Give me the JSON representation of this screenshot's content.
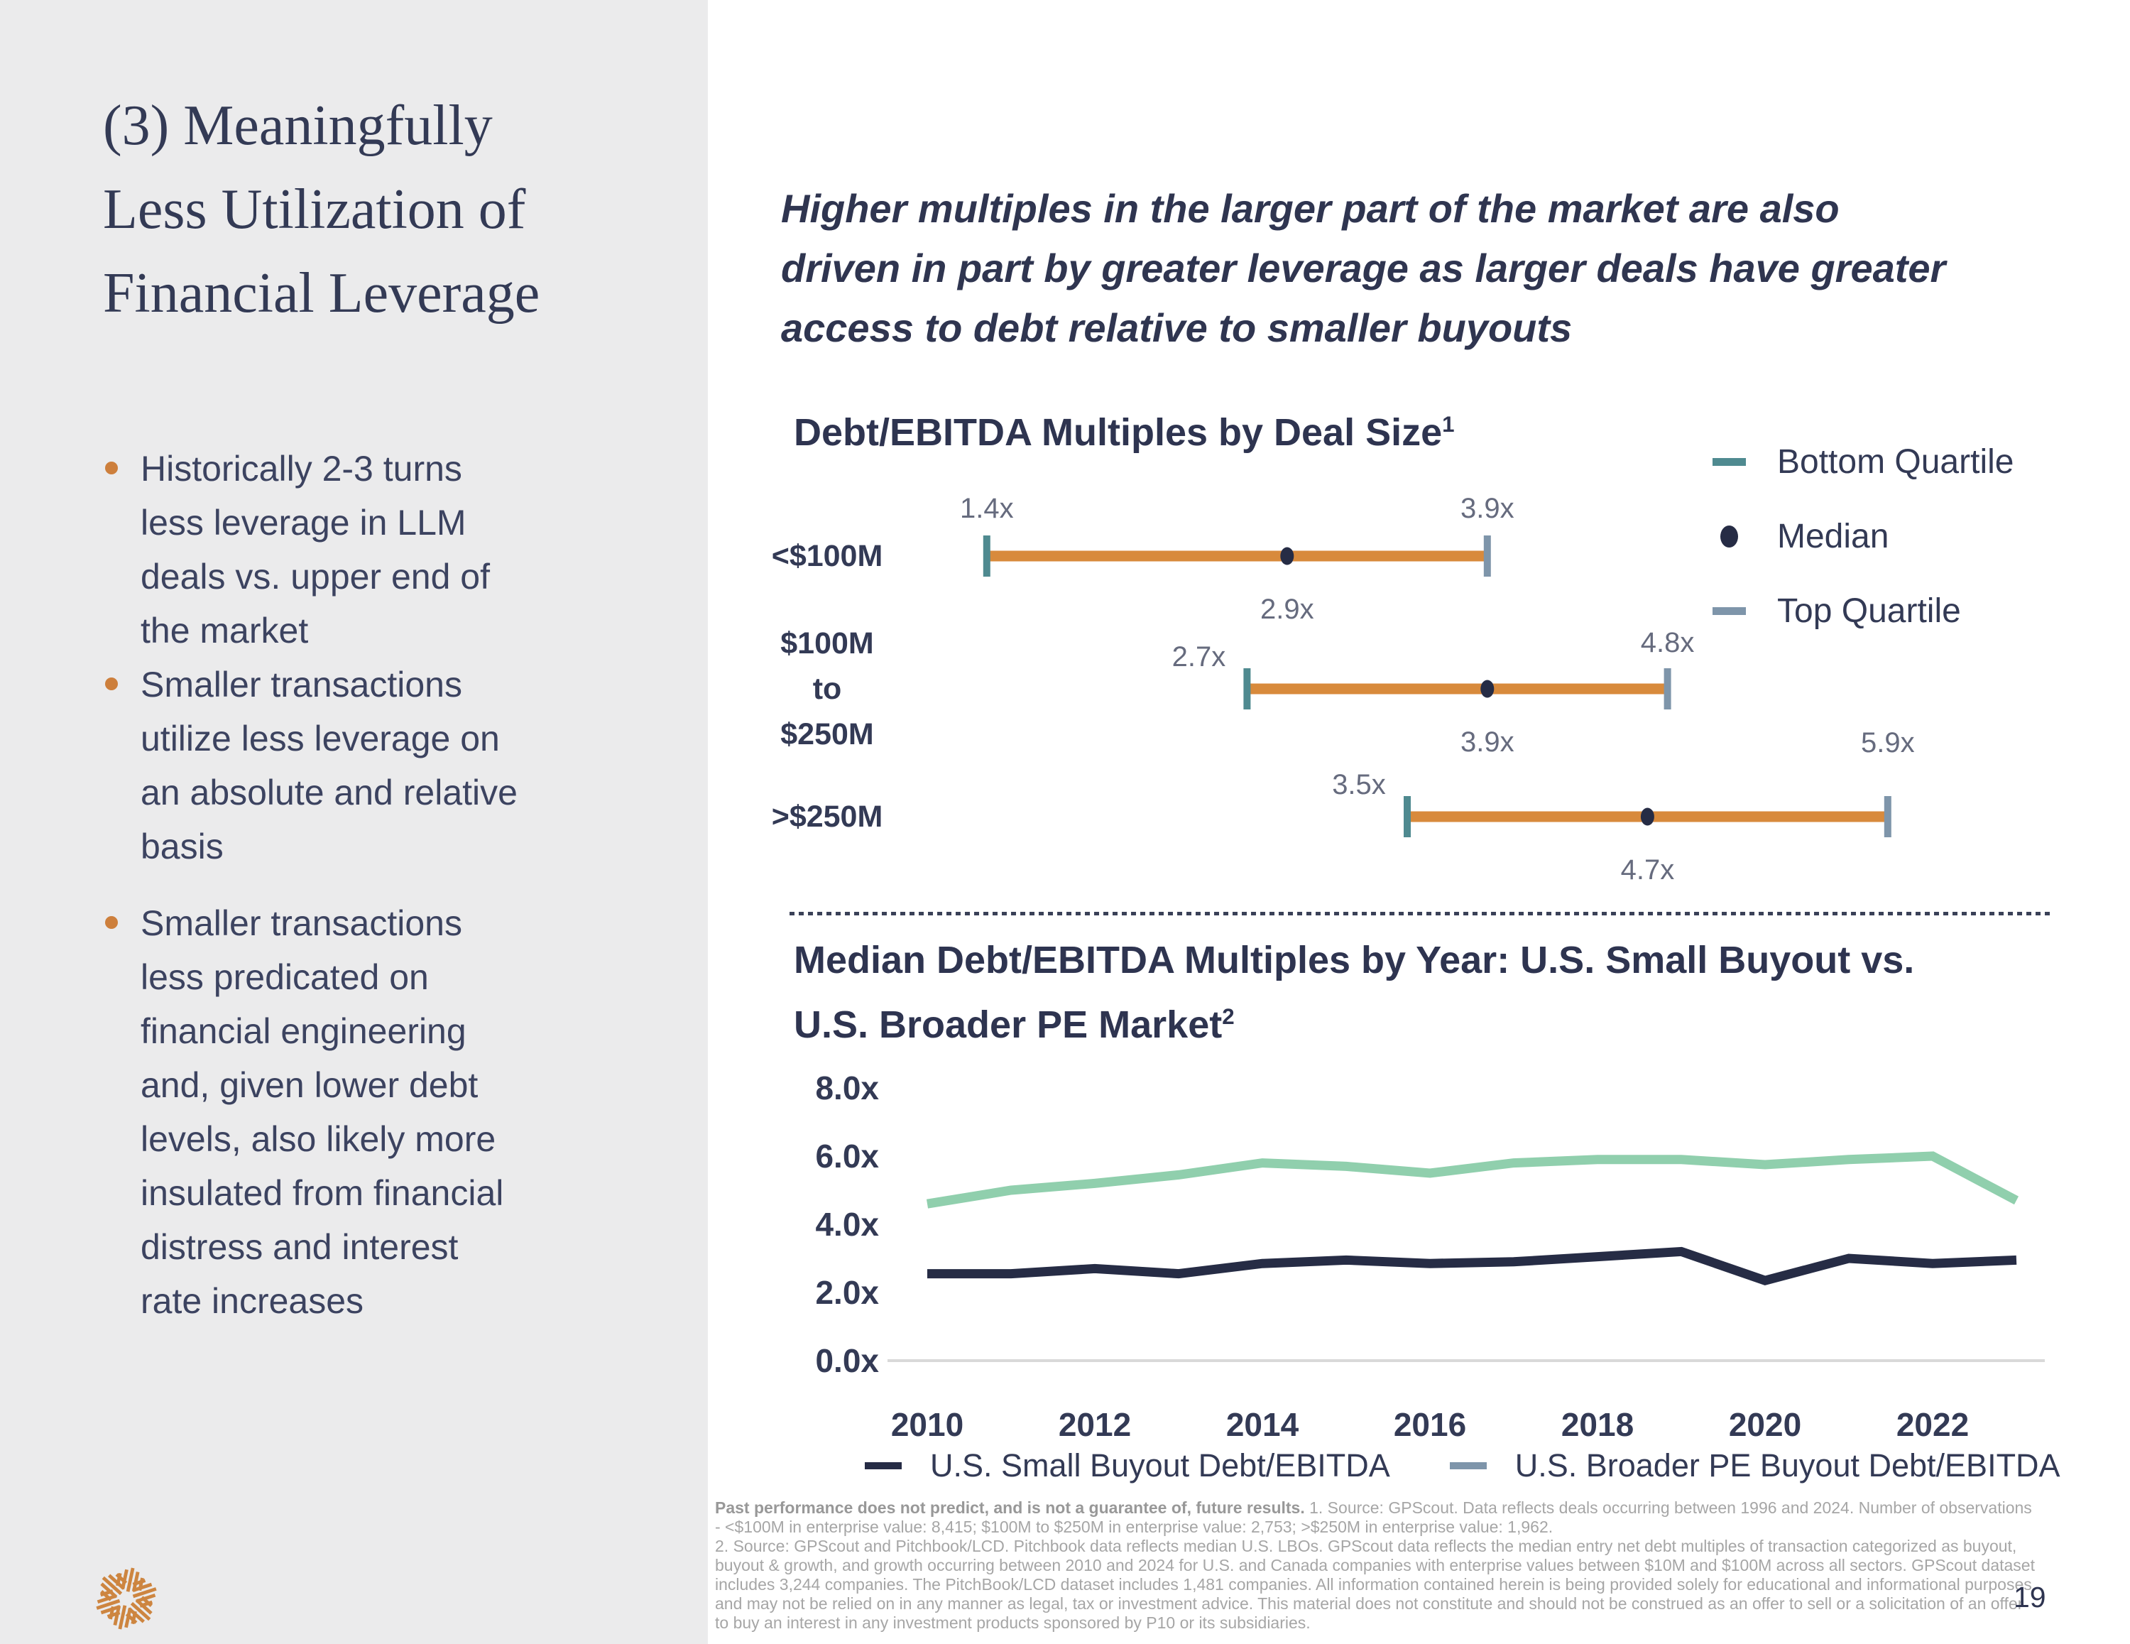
{
  "slide": {
    "title": "(3) Meaningfully\nLess Utilization of\nFinancial Leverage",
    "page_number": "19",
    "accent_orange": "#cd7f3c",
    "navy": "#333a55",
    "left_panel_background": "#ebebec"
  },
  "bullets": [
    {
      "text": "Historically 2-3 turns\nless leverage in LLM\ndeals vs. upper end of\nthe market"
    },
    {
      "text": "Smaller transactions\nutilize less leverage on\nan absolute and relative\nbasis"
    },
    {
      "text": "Smaller transactions\nless predicated on\nfinancial engineering\nand, given lower debt\nlevels, also likely more\ninsulated from financial\ndistress and interest\nrate increases"
    }
  ],
  "header_quote": "Higher multiples in the larger part of the market are also\ndriven in part by greater leverage as larger deals have greater\naccess to debt relative to smaller buyouts",
  "chart_data": [
    {
      "type": "range",
      "title": "Debt/EBITDA Multiples by Deal Size",
      "title_superscript": "1",
      "unit_suffix": "x",
      "bar_color": "#d88a3c",
      "legend": [
        {
          "label": "Bottom Quartile",
          "color": "#4f8a90"
        },
        {
          "label": "Median",
          "color": "#262c45"
        },
        {
          "label": "Top Quartile",
          "color": "#7e95aa"
        }
      ],
      "rows": [
        {
          "category": "<$100M",
          "bottom_quartile": 1.4,
          "median": 2.9,
          "top_quartile": 3.9
        },
        {
          "category": "$100M\nto\n$250M",
          "bottom_quartile": 2.7,
          "median": 3.9,
          "top_quartile": 4.8
        },
        {
          "category": ">$250M",
          "bottom_quartile": 3.5,
          "median": 4.7,
          "top_quartile": 5.9
        }
      ]
    },
    {
      "type": "line",
      "title": "Median Debt/EBITDA Multiples by Year: U.S. Small Buyout vs.\nU.S. Broader PE Market",
      "title_superscript": "2",
      "x": [
        2010,
        2011,
        2012,
        2013,
        2014,
        2015,
        2016,
        2017,
        2018,
        2019,
        2020,
        2021,
        2022,
        2023
      ],
      "x_tick_labels": [
        "2010",
        "2012",
        "2014",
        "2016",
        "2018",
        "2020",
        "2022"
      ],
      "y_ticks": [
        {
          "value": 0,
          "label": "0.0x"
        },
        {
          "value": 2,
          "label": "2.0x"
        },
        {
          "value": 4,
          "label": "4.0x"
        },
        {
          "value": 6,
          "label": "6.0x"
        },
        {
          "value": 8,
          "label": "8.0x"
        }
      ],
      "ylim": [
        0,
        8
      ],
      "axis_color": "#d9d9d9",
      "grid": "off",
      "legend_position": "bottom",
      "series": [
        {
          "name": "U.S. Small Buyout Debt/EBITDA",
          "color": "#262c45",
          "legend_color": "#262c45",
          "values": [
            2.55,
            2.55,
            2.7,
            2.55,
            2.85,
            2.95,
            2.85,
            2.9,
            3.05,
            3.2,
            2.35,
            3.0,
            2.85,
            2.95
          ]
        },
        {
          "name": "U.S. Broader PE Buyout Debt/EBITDA",
          "color": "#90cfad",
          "legend_color": "#7e95aa",
          "values": [
            4.6,
            5.0,
            5.2,
            5.45,
            5.8,
            5.7,
            5.5,
            5.8,
            5.9,
            5.9,
            5.75,
            5.9,
            6.0,
            4.7
          ]
        }
      ]
    }
  ],
  "footnotes": {
    "bold_intro": "Past performance does not predict, and is not a guarantee of, future results.",
    "note1": "1. Source: GPScout. Data reflects deals occurring between 1996 and 2024. Number of observations - <$100M in enterprise value: 8,415; $100M to $250M in enterprise value: 2,753; >$250M in enterprise value: 1,962.",
    "note2": "2. Source: GPScout and Pitchbook/LCD. Pitchbook data reflects median U.S. LBOs. GPScout data reflects the median entry net debt multiples of transaction categorized as buyout, buyout & growth, and growth occurring between 2010 and 2024 for U.S. and Canada companies with enterprise values between $10M and $100M across all sectors. GPScout dataset includes 3,244 companies. The PitchBook/LCD dataset includes 1,481 companies. All information contained herein is being provided solely for educational and informational purposes and may not be relied on in any manner as legal, tax or investment advice. This material does not constitute and should not be construed as an offer to sell or a solicitation of an offer to buy an interest in any investment products sponsored by P10 or its subsidiaries."
  },
  "logo": {
    "name": "p10-logo",
    "color": "#cd8540"
  }
}
